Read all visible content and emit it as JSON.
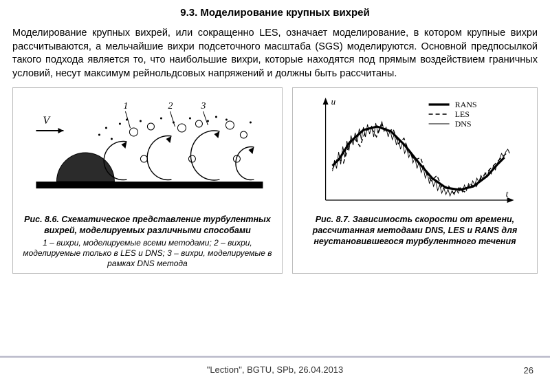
{
  "title": "9.3. Моделирование крупных вихрей",
  "paragraph": "Моделирование крупных вихрей, или сокращенно LES, означает моделирование, в котором крупные вихри рассчитываются, а мельчайшие вихри подсеточного масштаба (SGS) моделируются. Основной предпосылкой такого подхода является то, что наибольшие вихри, которые находятся под прямым воздействием граничных условий, несут максимум рейнольдсовых напряжений и  должны быть рассчитаны.",
  "fig_left": {
    "title": "Рис. 8.6. Схематическое представление турбулентных вихрей, моделируемых различными способами",
    "subtitle": "1 – вихри, моделируемые всеми методами; 2 – вихри, моделируемые только в LES и DNS; 3 – вихри, моделируемые в рамках DNS метода",
    "label_V": "V",
    "label_1": "1",
    "label_2": "2",
    "label_3": "3",
    "colors": {
      "stroke": "#000000",
      "fill_body": "#333333",
      "ground": "#000000"
    }
  },
  "fig_right": {
    "title": "Рис. 8.7. Зависимость скорости от времени, рассчитанная методами DNS, LES и RANS   для неустановившегося турбулентного течения",
    "axis_u": "u",
    "axis_t": "t",
    "legend": {
      "rans": "RANS",
      "les": "LES",
      "dns": "DNS"
    },
    "chart": {
      "rans": {
        "color": "#000000",
        "width": 3.2,
        "dash": "none",
        "points": [
          [
            10,
            90
          ],
          [
            20,
            80
          ],
          [
            35,
            56
          ],
          [
            55,
            38
          ],
          [
            75,
            33
          ],
          [
            95,
            40
          ],
          [
            115,
            60
          ],
          [
            135,
            85
          ],
          [
            155,
            108
          ],
          [
            175,
            122
          ],
          [
            195,
            125
          ],
          [
            215,
            120
          ],
          [
            235,
            105
          ],
          [
            250,
            88
          ],
          [
            260,
            78
          ]
        ]
      },
      "les": {
        "color": "#000000",
        "width": 1.4,
        "dash": "6,4",
        "points": [
          [
            10,
            95
          ],
          [
            18,
            78
          ],
          [
            26,
            86
          ],
          [
            34,
            60
          ],
          [
            42,
            50
          ],
          [
            50,
            62
          ],
          [
            58,
            40
          ],
          [
            66,
            34
          ],
          [
            74,
            48
          ],
          [
            82,
            30
          ],
          [
            90,
            42
          ],
          [
            98,
            36
          ],
          [
            106,
            58
          ],
          [
            114,
            50
          ],
          [
            122,
            72
          ],
          [
            130,
            82
          ],
          [
            138,
            78
          ],
          [
            146,
            100
          ],
          [
            154,
            112
          ],
          [
            162,
            104
          ],
          [
            170,
            124
          ],
          [
            178,
            118
          ],
          [
            186,
            130
          ],
          [
            194,
            122
          ],
          [
            202,
            128
          ],
          [
            210,
            116
          ],
          [
            218,
            122
          ],
          [
            226,
            108
          ],
          [
            234,
            100
          ],
          [
            242,
            92
          ],
          [
            250,
            84
          ],
          [
            258,
            76
          ],
          [
            266,
            70
          ]
        ]
      },
      "dns": {
        "color": "#000000",
        "width": 0.9,
        "dash": "none",
        "points": [
          [
            10,
            98
          ],
          [
            13,
            82
          ],
          [
            16,
            94
          ],
          [
            19,
            70
          ],
          [
            22,
            88
          ],
          [
            25,
            62
          ],
          [
            28,
            78
          ],
          [
            31,
            54
          ],
          [
            34,
            68
          ],
          [
            37,
            46
          ],
          [
            40,
            60
          ],
          [
            43,
            42
          ],
          [
            46,
            56
          ],
          [
            49,
            36
          ],
          [
            52,
            52
          ],
          [
            55,
            34
          ],
          [
            58,
            48
          ],
          [
            61,
            30
          ],
          [
            64,
            44
          ],
          [
            67,
            32
          ],
          [
            70,
            48
          ],
          [
            73,
            28
          ],
          [
            76,
            42
          ],
          [
            79,
            34
          ],
          [
            82,
            26
          ],
          [
            85,
            40
          ],
          [
            88,
            34
          ],
          [
            91,
            48
          ],
          [
            94,
            38
          ],
          [
            97,
            52
          ],
          [
            100,
            44
          ],
          [
            103,
            60
          ],
          [
            106,
            50
          ],
          [
            109,
            66
          ],
          [
            112,
            56
          ],
          [
            115,
            72
          ],
          [
            118,
            64
          ],
          [
            121,
            78
          ],
          [
            124,
            70
          ],
          [
            127,
            86
          ],
          [
            130,
            78
          ],
          [
            133,
            94
          ],
          [
            136,
            84
          ],
          [
            139,
            100
          ],
          [
            142,
            92
          ],
          [
            145,
            108
          ],
          [
            148,
            100
          ],
          [
            151,
            116
          ],
          [
            154,
            106
          ],
          [
            157,
            120
          ],
          [
            160,
            112
          ],
          [
            163,
            126
          ],
          [
            166,
            118
          ],
          [
            169,
            130
          ],
          [
            172,
            122
          ],
          [
            175,
            132
          ],
          [
            178,
            124
          ],
          [
            181,
            134
          ],
          [
            184,
            126
          ],
          [
            187,
            132
          ],
          [
            190,
            124
          ],
          [
            193,
            130
          ],
          [
            196,
            122
          ],
          [
            199,
            128
          ],
          [
            202,
            118
          ],
          [
            205,
            126
          ],
          [
            208,
            116
          ],
          [
            211,
            122
          ],
          [
            214,
            112
          ],
          [
            217,
            118
          ],
          [
            220,
            108
          ],
          [
            223,
            114
          ],
          [
            226,
            104
          ],
          [
            229,
            110
          ],
          [
            232,
            100
          ],
          [
            235,
            106
          ],
          [
            238,
            96
          ],
          [
            241,
            102
          ],
          [
            244,
            90
          ],
          [
            247,
            96
          ],
          [
            250,
            86
          ],
          [
            253,
            80
          ],
          [
            256,
            72
          ],
          [
            259,
            78
          ],
          [
            262,
            70
          ],
          [
            265,
            66
          ],
          [
            268,
            72
          ]
        ]
      },
      "xlim": [
        0,
        280
      ],
      "ylim": [
        0,
        160
      ]
    }
  },
  "footer": "\"Lection\", BGTU, SPb,  26.04.2013",
  "page": "26"
}
